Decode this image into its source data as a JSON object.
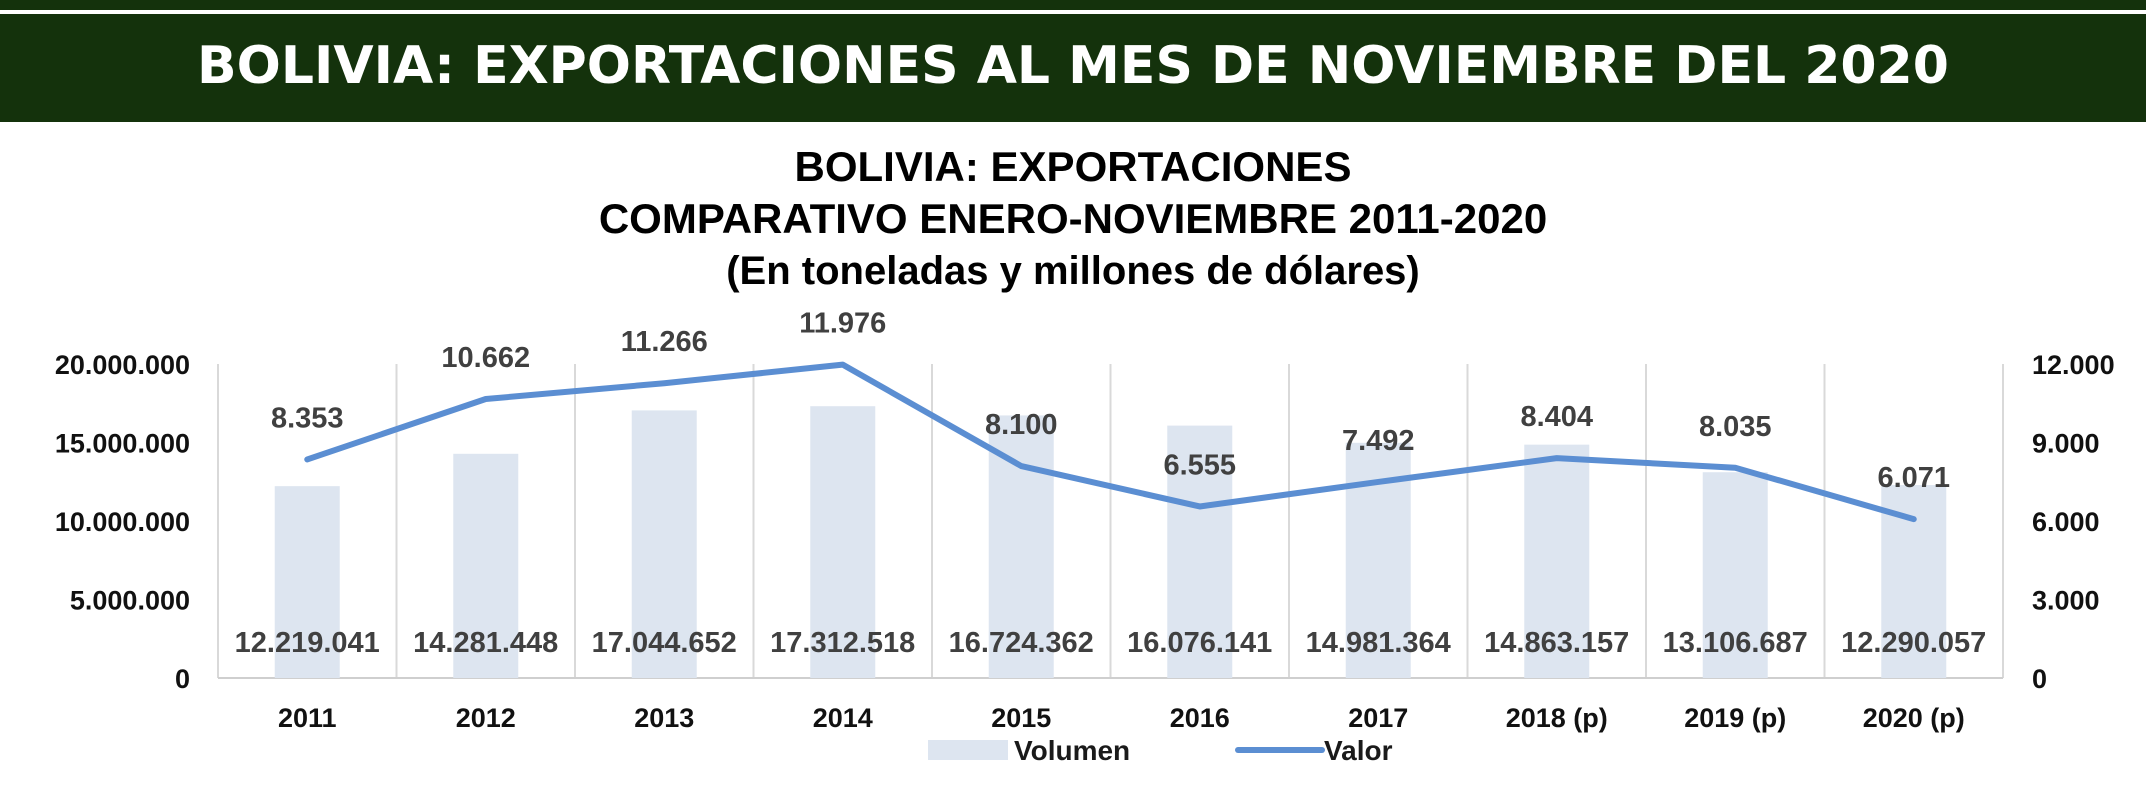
{
  "banner": {
    "title": "BOLIVIA: EXPORTACIONES AL MES DE NOVIEMBRE DEL 2020"
  },
  "colors": {
    "banner": "#14320c",
    "bar": "#dde5f0",
    "line": "#5b8ed2"
  },
  "chart_data": {
    "type": "bar",
    "title": [
      "BOLIVIA: EXPORTACIONES",
      "COMPARATIVO ENERO-NOVIEMBRE 2011-2020",
      "(En toneladas y millones de dólares)"
    ],
    "categories": [
      "2011",
      "2012",
      "2013",
      "2014",
      "2015",
      "2016",
      "2017",
      "2018 (p)",
      "2019 (p)",
      "2020 (p)"
    ],
    "series": [
      {
        "name": "Volumen",
        "type": "bar",
        "axis": "left",
        "values": [
          12219041,
          14281448,
          17044652,
          17312518,
          16724362,
          16076141,
          14981364,
          14863157,
          13106687,
          12290057
        ],
        "labels": [
          "12.219.041",
          "14.281.448",
          "17.044.652",
          "17.312.518",
          "16.724.362",
          "16.076.141",
          "14.981.364",
          "14.863.157",
          "13.106.687",
          "12.290.057"
        ]
      },
      {
        "name": "Valor",
        "type": "line",
        "axis": "right",
        "values": [
          8353,
          10662,
          11266,
          11976,
          8100,
          6555,
          7492,
          8404,
          8035,
          6071
        ],
        "labels": [
          "8.353",
          "10.662",
          "11.266",
          "11.976",
          "8.100",
          "6.555",
          "7.492",
          "8.404",
          "8.035",
          "6.071"
        ]
      }
    ],
    "ylim": [
      0,
      20000000
    ],
    "y_ticks": [
      "0",
      "5.000.000",
      "10.000.000",
      "15.000.000",
      "20.000.000"
    ],
    "y2lim": [
      0,
      12000
    ],
    "y2_ticks": [
      "0",
      "3.000",
      "6.000",
      "9.000",
      "12.000"
    ],
    "grid": "vertical",
    "legend": "bottom"
  }
}
